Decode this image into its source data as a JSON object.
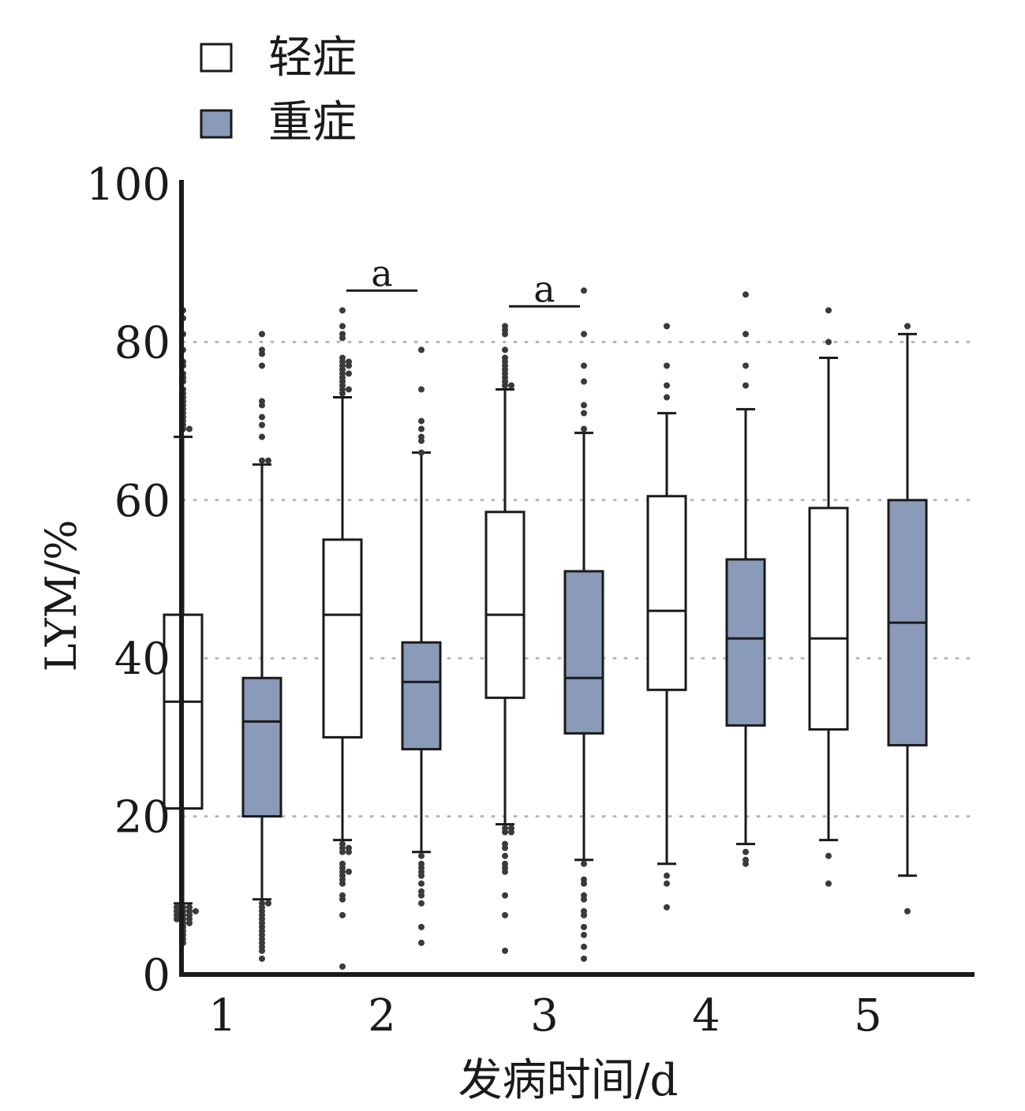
{
  "chart_data": {
    "type": "box",
    "xlabel": "发病时间/d",
    "ylabel": "LYM/%",
    "ylim": [
      0,
      100
    ],
    "yticks": [
      0,
      20,
      40,
      60,
      80,
      100
    ],
    "grid": "horizontal dotted at 20, 40, 60, 80",
    "legend_position": "top-left",
    "categories": [
      "1",
      "2",
      "3",
      "4",
      "5"
    ],
    "series": [
      {
        "name": "轻症",
        "color": "#ffffff",
        "boxes": [
          {
            "category": "1",
            "whisker_low": 9,
            "q1": 21,
            "median": 34.5,
            "q3": 45.5,
            "whisker_high": 68,
            "outliers": [
              84,
              83,
              81,
              79,
              77.5,
              77,
              76,
              75.5,
              75,
              74,
              73.5,
              73,
              72.5,
              72,
              71.5,
              71,
              70.5,
              70,
              69.5,
              69,
              69,
              8.5,
              8.5,
              8.5,
              8,
              8,
              8,
              8,
              7.5,
              7.5,
              7.5,
              7,
              7,
              7,
              6.5,
              6.5,
              6,
              5.5,
              5,
              4.5,
              4
            ]
          },
          {
            "category": "2",
            "whisker_low": 17,
            "q1": 30,
            "median": 45.5,
            "q3": 55,
            "whisker_high": 73,
            "outliers": [
              84,
              82,
              81,
              80.5,
              78,
              77.5,
              77.5,
              77,
              77,
              76.5,
              76,
              76,
              75.5,
              75,
              74.5,
              74,
              74,
              73.5,
              16.5,
              16,
              16,
              15.5,
              15.5,
              14,
              13.5,
              13,
              13,
              12.5,
              12,
              11.5,
              10,
              9.5,
              7.5,
              1
            ]
          },
          {
            "category": "3",
            "whisker_low": 19,
            "q1": 35,
            "median": 45.5,
            "q3": 58.5,
            "whisker_high": 74,
            "outliers": [
              82,
              81.5,
              81,
              79,
              78,
              77.5,
              77,
              76.5,
              76,
              75.5,
              75,
              74.5,
              74.5,
              18.5,
              18.5,
              18,
              18,
              16.5,
              16,
              15,
              14,
              13.5,
              13,
              10,
              7.5,
              3
            ]
          },
          {
            "category": "4",
            "whisker_low": 14,
            "q1": 36,
            "median": 46,
            "q3": 60.5,
            "whisker_high": 71,
            "outliers": [
              82,
              77,
              74.5,
              73,
              12.5,
              11.5,
              8.5
            ]
          },
          {
            "category": "5",
            "whisker_low": 17,
            "q1": 31,
            "median": 42.5,
            "q3": 59,
            "whisker_high": 78,
            "outliers": [
              84,
              80,
              15,
              11.5
            ]
          }
        ]
      },
      {
        "name": "重症",
        "color": "#8a9ab9",
        "boxes": [
          {
            "category": "1",
            "whisker_low": 9.5,
            "q1": 20,
            "median": 32,
            "q3": 37.5,
            "whisker_high": 64.5,
            "outliers": [
              81,
              79,
              78.5,
              77,
              72.5,
              72,
              70.5,
              69.5,
              68,
              65,
              65,
              9,
              9,
              8.5,
              8,
              7.5,
              7,
              6.5,
              6,
              5.5,
              5,
              4.5,
              4,
              3.5,
              3,
              2
            ]
          },
          {
            "category": "2",
            "whisker_low": 15.5,
            "q1": 28.5,
            "median": 37,
            "q3": 42,
            "whisker_high": 66,
            "outliers": [
              79,
              74,
              70,
              69,
              68,
              67.5,
              66,
              15,
              14,
              13.5,
              13,
              12.5,
              11.5,
              10.5,
              10,
              9,
              6,
              4
            ]
          },
          {
            "category": "3",
            "whisker_low": 14.5,
            "q1": 30.5,
            "median": 37.5,
            "q3": 51,
            "whisker_high": 68.5,
            "outliers": [
              86.5,
              81,
              77,
              75,
              72,
              71,
              69,
              14,
              12,
              11.5,
              10,
              9.5,
              8,
              7.5,
              6,
              5,
              3.5,
              2
            ]
          },
          {
            "category": "4",
            "whisker_low": 16.5,
            "q1": 31.5,
            "median": 42.5,
            "q3": 52.5,
            "whisker_high": 71.5,
            "outliers": [
              86,
              81,
              77,
              74.5,
              15.5,
              14.5,
              14
            ]
          },
          {
            "category": "5",
            "whisker_low": 12.5,
            "q1": 29,
            "median": 44.5,
            "q3": 60,
            "whisker_high": 81,
            "outliers": [
              82,
              8
            ]
          }
        ]
      }
    ],
    "annotations": [
      {
        "text": "a",
        "category": "2",
        "y": 86.5
      },
      {
        "text": "a",
        "category": "3",
        "y": 84.5
      }
    ]
  }
}
